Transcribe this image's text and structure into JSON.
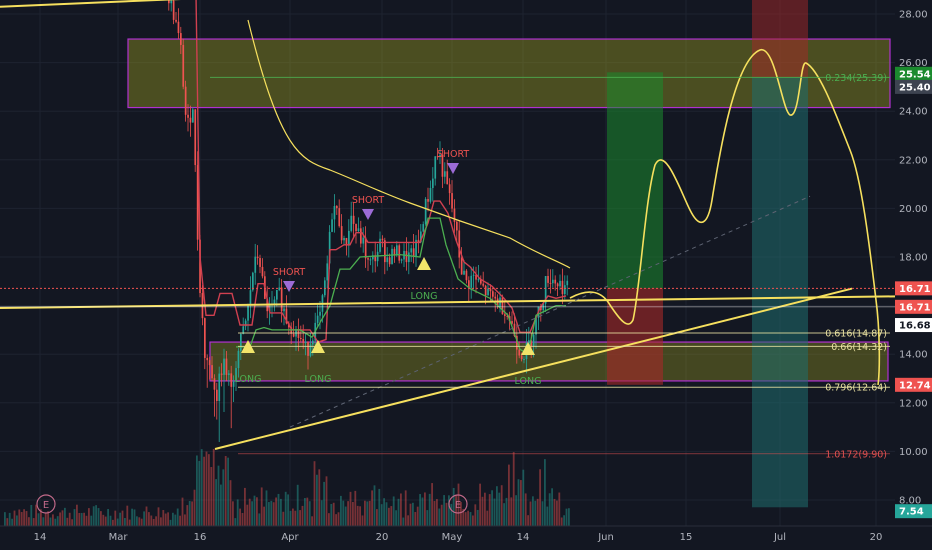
{
  "colors": {
    "background": "#131722",
    "grid": "#1e2330",
    "axis_text": "#b2b5be",
    "candle_up": "#26a69a",
    "candle_down": "#ef5350",
    "trendline": "#f6e05e",
    "zone_fill": "#b5b520",
    "zone_border": "#b030d0",
    "signal_short": "#9c6bd6",
    "signal_long": "#f1e46a",
    "ma_red": "#d04050",
    "ma_green": "#4caf50",
    "long_zone": "#1b8a2e",
    "short_zone": "#a52828",
    "teal_zone": "#1f6e6e"
  },
  "chart_data": {
    "type": "candlestick",
    "x_axis": {
      "tick_labels": [
        "14",
        "Mar",
        "16",
        "Apr",
        "20",
        "May",
        "14",
        "Jun",
        "15",
        "Jul",
        "20"
      ]
    },
    "y_axis": {
      "range": [
        7.5,
        28.8
      ],
      "tick_labels": [
        "8.00",
        "10.00",
        "12.00",
        "14.00",
        "16.00",
        "18.00",
        "20.00",
        "22.00",
        "24.00",
        "26.00",
        "28.00"
      ]
    },
    "price_tags": [
      {
        "label": "25.54",
        "value": 25.54,
        "bg": "#1b8a2e",
        "fg": "#ffffff"
      },
      {
        "label": "25.40",
        "value": 25.0,
        "bg": "#3d4350",
        "fg": "#ffffff"
      },
      {
        "label": "16.71",
        "value": 16.71,
        "bg": "#ef5350",
        "fg": "#ffffff"
      },
      {
        "label": "16.71",
        "value": 15.95,
        "bg": "#ef5350",
        "fg": "#ffffff"
      },
      {
        "label": "16.68",
        "value": 15.2,
        "bg": "#ffffff",
        "fg": "#131722"
      },
      {
        "label": "12.74",
        "value": 12.74,
        "bg": "#ef5350",
        "fg": "#ffffff"
      },
      {
        "label": "7.54",
        "value": 7.54,
        "bg": "#26a69a",
        "fg": "#ffffff"
      }
    ],
    "fib_levels": [
      {
        "label": "0.234(25.39)",
        "value": 25.39,
        "color": "#4caf50"
      },
      {
        "label": "0.616(14.87)",
        "value": 14.87,
        "color": "#e8e0a0"
      },
      {
        "label": "0.66(14.32)",
        "value": 14.32,
        "color": "#e8e0a0"
      },
      {
        "label": "0.796(12.64)",
        "value": 12.64,
        "color": "#e8e0a0"
      },
      {
        "label": "1.0172(9.90)",
        "value": 9.9,
        "color": "#e05050"
      }
    ],
    "signals": [
      {
        "type": "short",
        "label": "SHORT"
      },
      {
        "type": "short",
        "label": "SHORT"
      },
      {
        "type": "short",
        "label": "SHORT"
      },
      {
        "type": "long",
        "label": "LONG"
      },
      {
        "type": "long",
        "label": "LONG"
      },
      {
        "type": "long",
        "label": "LONG"
      },
      {
        "type": "long",
        "label": "LONG"
      }
    ],
    "earnings_markers": [
      "E",
      "E"
    ]
  }
}
